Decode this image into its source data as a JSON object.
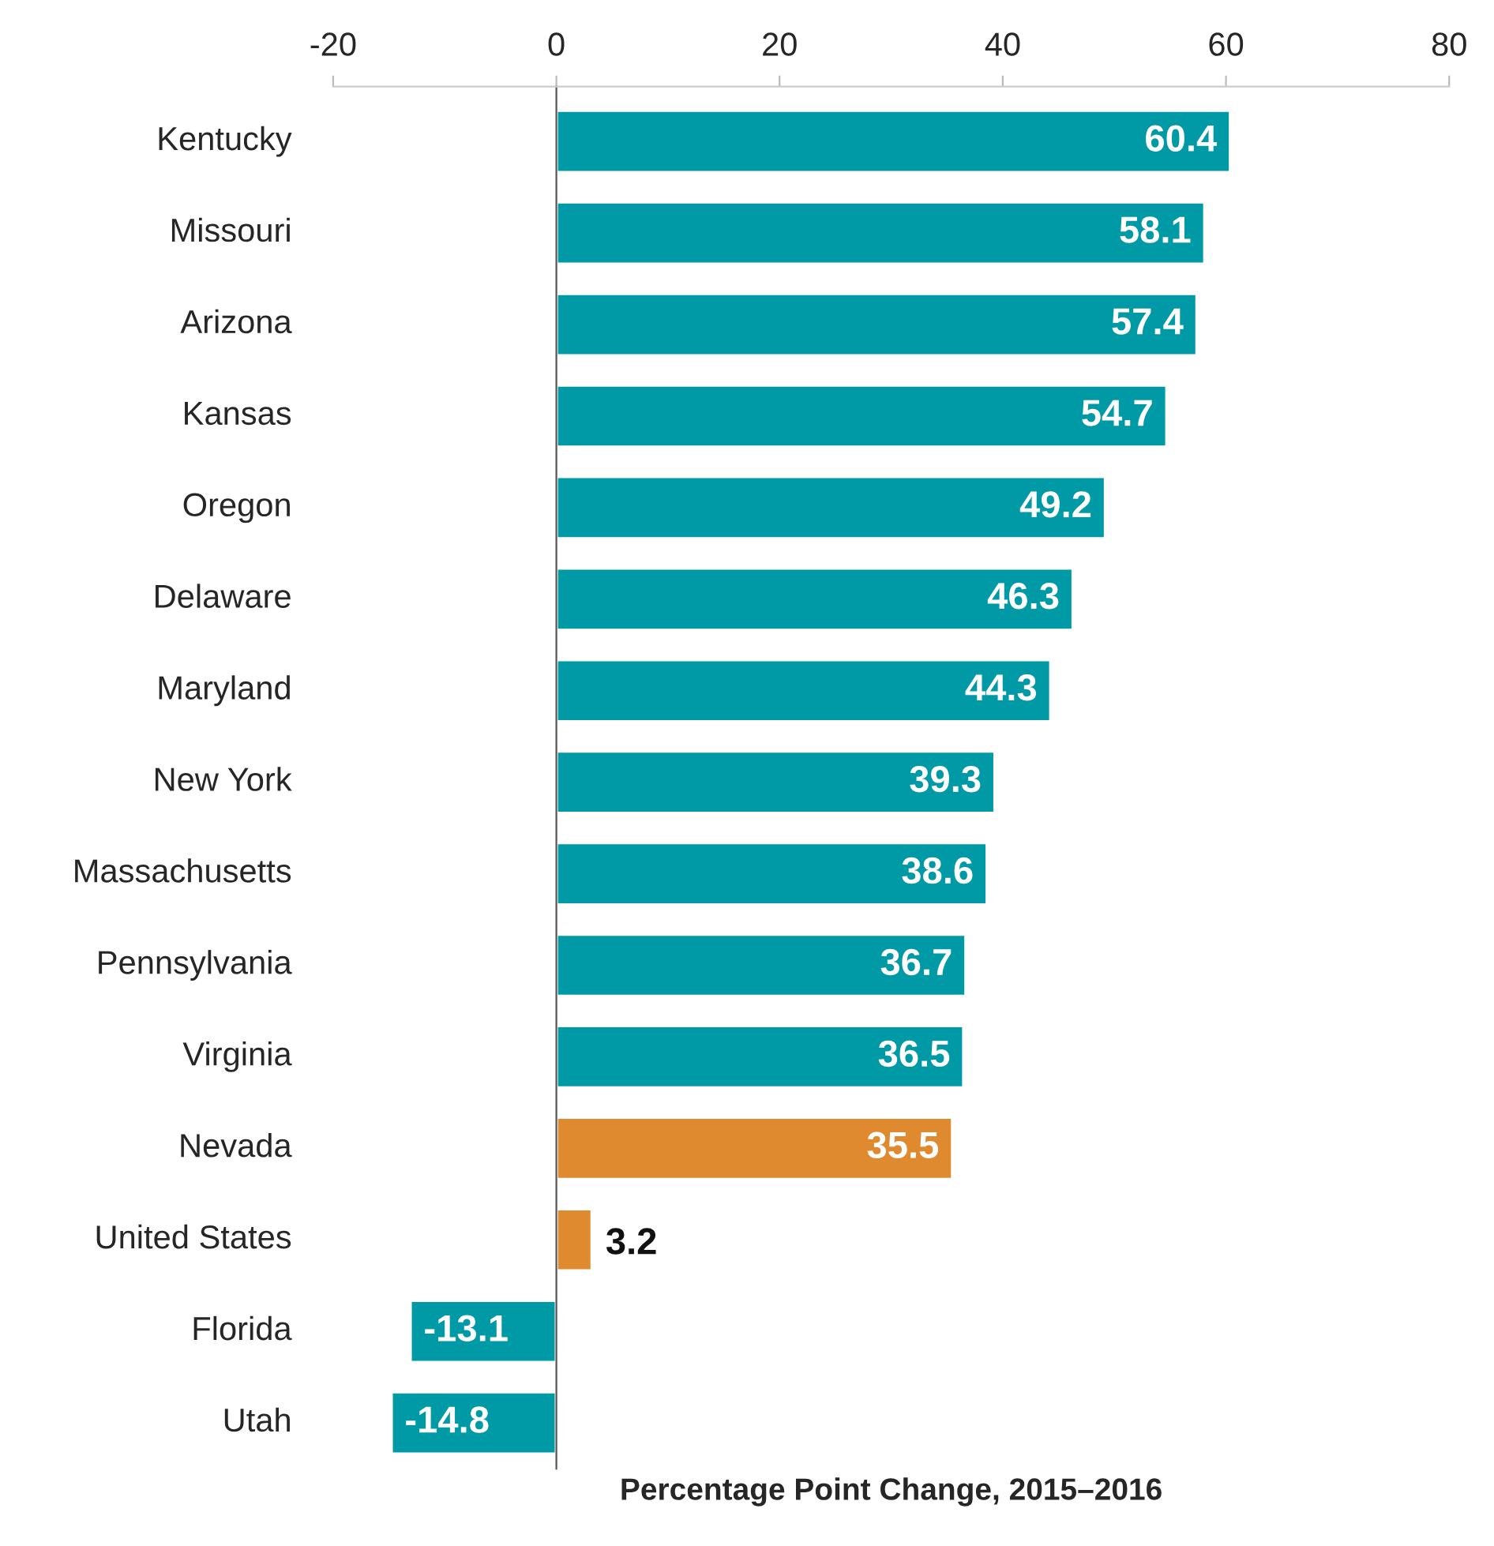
{
  "chart_data": {
    "type": "bar",
    "orientation": "horizontal",
    "xlabel": "Percentage Point Change, 2015–2016",
    "categories": [
      "Kentucky",
      "Missouri",
      "Arizona",
      "Kansas",
      "Oregon",
      "Delaware",
      "Maryland",
      "New York",
      "Massachusetts",
      "Pennsylvania",
      "Virginia",
      "Nevada",
      "United States",
      "Florida",
      "Utah"
    ],
    "values": [
      60.4,
      58.1,
      57.4,
      54.7,
      49.2,
      46.3,
      44.3,
      39.3,
      38.6,
      36.7,
      36.5,
      35.5,
      3.2,
      -13.1,
      -14.8
    ],
    "colors": [
      "#009aa6",
      "#009aa6",
      "#009aa6",
      "#009aa6",
      "#009aa6",
      "#009aa6",
      "#009aa6",
      "#009aa6",
      "#009aa6",
      "#009aa6",
      "#009aa6",
      "#e08a30",
      "#e08a30",
      "#009aa6",
      "#009aa6"
    ],
    "xlim": [
      -20,
      80
    ],
    "xticks": [
      -20,
      0,
      20,
      40,
      60,
      80
    ],
    "data_labels": true
  }
}
